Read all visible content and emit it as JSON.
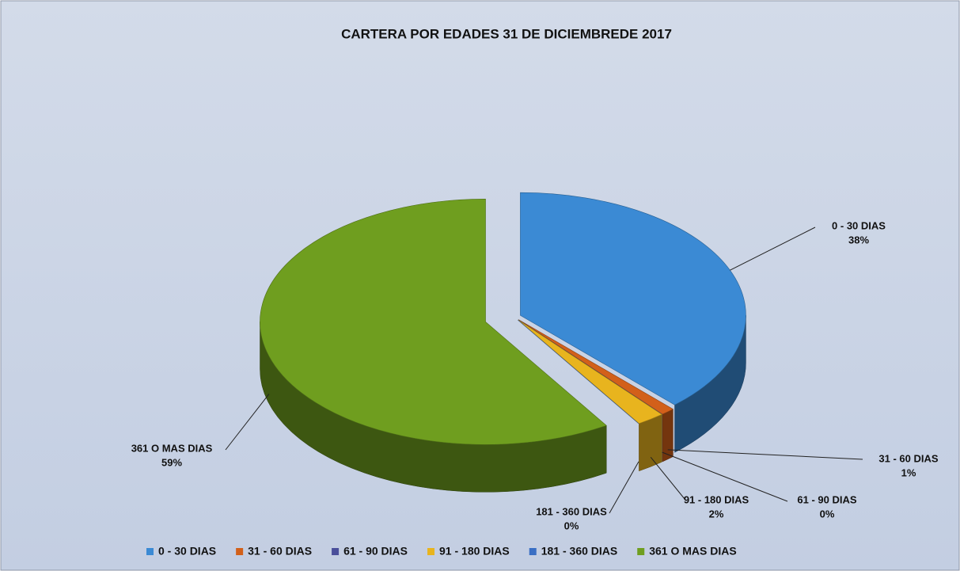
{
  "chart_data": {
    "type": "pie",
    "title": "CARTERA POR EDADES  31 DE DICIEMBREDE 2017",
    "categories": [
      "0 - 30 DIAS",
      "31 - 60 DIAS",
      "61 - 90 DIAS",
      "91 - 180 DIAS",
      "181 - 360 DIAS",
      "361 O MAS DIAS"
    ],
    "values": [
      38,
      1,
      0,
      2,
      0,
      59
    ],
    "value_labels": [
      "38%",
      "1%",
      "0%",
      "2%",
      "0%",
      "59%"
    ],
    "colors": [
      "#3b8ad4",
      "#d2601a",
      "#4a4f9a",
      "#e8b41e",
      "#3a6fc4",
      "#6f9e1f"
    ],
    "legend": "bottom"
  }
}
